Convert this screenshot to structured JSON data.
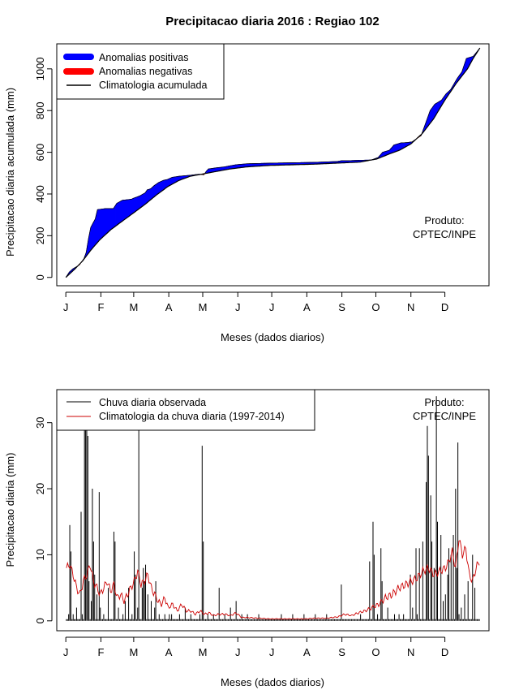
{
  "title": "Precipitacao diaria 2016 : Regiao 102",
  "months": [
    "J",
    "F",
    "M",
    "A",
    "M",
    "J",
    "J",
    "A",
    "S",
    "O",
    "N",
    "D"
  ],
  "month_start_days": [
    0,
    31,
    60,
    91,
    121,
    152,
    182,
    213,
    244,
    274,
    305,
    335
  ],
  "xlabel": "Meses (dados diarios)",
  "product": {
    "line1": "Produto:",
    "line2": "CPTEC/INPE"
  },
  "colors": {
    "positive": "#0000ff",
    "negative": "#ff0000",
    "observed": "#000000",
    "climatology": "#cc0000"
  },
  "chart_data": [
    {
      "type": "area",
      "name": "accumulated",
      "ylabel": "Precipitacao diaria acumulada (mm)",
      "yticks": [
        0,
        200,
        400,
        600,
        800,
        1000
      ],
      "ylim": [
        -40,
        1120
      ],
      "xlim": [
        -8,
        374
      ],
      "legend": [
        "Anomalias positivas",
        "Anomalias negativas",
        "Climatologia acumulada"
      ],
      "climatology": [
        [
          0,
          0
        ],
        [
          8,
          40
        ],
        [
          15,
          80
        ],
        [
          22,
          130
        ],
        [
          30,
          180
        ],
        [
          40,
          230
        ],
        [
          50,
          270
        ],
        [
          60,
          310
        ],
        [
          70,
          350
        ],
        [
          80,
          395
        ],
        [
          90,
          435
        ],
        [
          100,
          465
        ],
        [
          110,
          485
        ],
        [
          120,
          495
        ],
        [
          130,
          505
        ],
        [
          145,
          520
        ],
        [
          160,
          530
        ],
        [
          180,
          537
        ],
        [
          200,
          540
        ],
        [
          220,
          543
        ],
        [
          240,
          548
        ],
        [
          260,
          553
        ],
        [
          275,
          568
        ],
        [
          285,
          590
        ],
        [
          295,
          610
        ],
        [
          305,
          640
        ],
        [
          315,
          690
        ],
        [
          325,
          760
        ],
        [
          335,
          850
        ],
        [
          345,
          930
        ],
        [
          355,
          1000
        ],
        [
          360,
          1050
        ],
        [
          366,
          1100
        ]
      ],
      "observed": [
        [
          0,
          0
        ],
        [
          3,
          25
        ],
        [
          6,
          40
        ],
        [
          12,
          60
        ],
        [
          16,
          90
        ],
        [
          18,
          120
        ],
        [
          20,
          185
        ],
        [
          22,
          240
        ],
        [
          26,
          280
        ],
        [
          28,
          325
        ],
        [
          35,
          330
        ],
        [
          42,
          330
        ],
        [
          45,
          355
        ],
        [
          50,
          370
        ],
        [
          58,
          375
        ],
        [
          60,
          380
        ],
        [
          65,
          390
        ],
        [
          70,
          405
        ],
        [
          72,
          420
        ],
        [
          75,
          425
        ],
        [
          78,
          440
        ],
        [
          82,
          455
        ],
        [
          86,
          465
        ],
        [
          90,
          470
        ],
        [
          94,
          480
        ],
        [
          100,
          485
        ],
        [
          110,
          490
        ],
        [
          118,
          495
        ],
        [
          122,
          492
        ],
        [
          124,
          508
        ],
        [
          126,
          520
        ],
        [
          132,
          525
        ],
        [
          140,
          530
        ],
        [
          150,
          540
        ],
        [
          160,
          545
        ],
        [
          180,
          548
        ],
        [
          200,
          550
        ],
        [
          220,
          552
        ],
        [
          240,
          556
        ],
        [
          244,
          560
        ],
        [
          250,
          560
        ],
        [
          260,
          562
        ],
        [
          270,
          563
        ],
        [
          276,
          575
        ],
        [
          280,
          600
        ],
        [
          286,
          610
        ],
        [
          290,
          635
        ],
        [
          296,
          645
        ],
        [
          302,
          647
        ],
        [
          306,
          650
        ],
        [
          314,
          680
        ],
        [
          318,
          740
        ],
        [
          322,
          800
        ],
        [
          326,
          830
        ],
        [
          332,
          850
        ],
        [
          336,
          880
        ],
        [
          340,
          900
        ],
        [
          346,
          955
        ],
        [
          350,
          985
        ],
        [
          354,
          1050
        ],
        [
          360,
          1060
        ],
        [
          363,
          1080
        ],
        [
          366,
          1100
        ]
      ]
    },
    {
      "type": "bar+line",
      "name": "daily",
      "ylabel": "Precipitacao diaria (mm)",
      "yticks": [
        0,
        10,
        20,
        30
      ],
      "ylim": [
        -1.5,
        35
      ],
      "xlim": [
        -8,
        374
      ],
      "legend": [
        "Chuva diaria observada",
        "Climatologia da chuva diaria (1997-2014)"
      ],
      "observed": [
        [
          2,
          1
        ],
        [
          3,
          14.5
        ],
        [
          4,
          10.5
        ],
        [
          6,
          1
        ],
        [
          9,
          2
        ],
        [
          13,
          16.5
        ],
        [
          14,
          1
        ],
        [
          16,
          30
        ],
        [
          17,
          29.5
        ],
        [
          18,
          32
        ],
        [
          19,
          28
        ],
        [
          20,
          6
        ],
        [
          22,
          3
        ],
        [
          23,
          20
        ],
        [
          24,
          12
        ],
        [
          25,
          7
        ],
        [
          27,
          4
        ],
        [
          29,
          19.5
        ],
        [
          30,
          2
        ],
        [
          33,
          1
        ],
        [
          37,
          5
        ],
        [
          42,
          13.5
        ],
        [
          43,
          12
        ],
        [
          46,
          2
        ],
        [
          50,
          1
        ],
        [
          52,
          3
        ],
        [
          55,
          5
        ],
        [
          58,
          1
        ],
        [
          60,
          10.5
        ],
        [
          61,
          7
        ],
        [
          63,
          2
        ],
        [
          64,
          31
        ],
        [
          67,
          5
        ],
        [
          68,
          8
        ],
        [
          69,
          6
        ],
        [
          70,
          8.5
        ],
        [
          72,
          4
        ],
        [
          75,
          3
        ],
        [
          78,
          2
        ],
        [
          79,
          6
        ],
        [
          82,
          1
        ],
        [
          87,
          1
        ],
        [
          91,
          1
        ],
        [
          93,
          1
        ],
        [
          100,
          1
        ],
        [
          105,
          2
        ],
        [
          110,
          1
        ],
        [
          118,
          1
        ],
        [
          120,
          26.5
        ],
        [
          121,
          12
        ],
        [
          125,
          1
        ],
        [
          130,
          1
        ],
        [
          135,
          5
        ],
        [
          140,
          1
        ],
        [
          145,
          2
        ],
        [
          150,
          3
        ],
        [
          155,
          1
        ],
        [
          160,
          1
        ],
        [
          170,
          1
        ],
        [
          190,
          1
        ],
        [
          200,
          1
        ],
        [
          210,
          1
        ],
        [
          220,
          1
        ],
        [
          230,
          1
        ],
        [
          243,
          5.5
        ],
        [
          260,
          1
        ],
        [
          268,
          9
        ],
        [
          271,
          15
        ],
        [
          272,
          10
        ],
        [
          275,
          1
        ],
        [
          278,
          11
        ],
        [
          279,
          6
        ],
        [
          284,
          2
        ],
        [
          290,
          1
        ],
        [
          294,
          1
        ],
        [
          298,
          1
        ],
        [
          304,
          7
        ],
        [
          306,
          2
        ],
        [
          309,
          11
        ],
        [
          310,
          1
        ],
        [
          312,
          11
        ],
        [
          315,
          12
        ],
        [
          318,
          21
        ],
        [
          319,
          29.5
        ],
        [
          320,
          25
        ],
        [
          322,
          19
        ],
        [
          323,
          12
        ],
        [
          325,
          8
        ],
        [
          327,
          34
        ],
        [
          328,
          15
        ],
        [
          331,
          13
        ],
        [
          333,
          3
        ],
        [
          335,
          4
        ],
        [
          337,
          7
        ],
        [
          338,
          11
        ],
        [
          340,
          10
        ],
        [
          342,
          13
        ],
        [
          344,
          20
        ],
        [
          345,
          8
        ],
        [
          346,
          27
        ],
        [
          347,
          1
        ],
        [
          349,
          2
        ],
        [
          352,
          4
        ],
        [
          355,
          6
        ],
        [
          359,
          10
        ],
        [
          361,
          5
        ]
      ],
      "climatology": [
        [
          0,
          8
        ],
        [
          3,
          8.5
        ],
        [
          6,
          7
        ],
        [
          9,
          5
        ],
        [
          12,
          4
        ],
        [
          15,
          6
        ],
        [
          18,
          7
        ],
        [
          21,
          8.5
        ],
        [
          24,
          6
        ],
        [
          27,
          5
        ],
        [
          30,
          4
        ],
        [
          33,
          5
        ],
        [
          36,
          6
        ],
        [
          39,
          4.5
        ],
        [
          42,
          5.5
        ],
        [
          45,
          3.5
        ],
        [
          48,
          4
        ],
        [
          51,
          3
        ],
        [
          54,
          4
        ],
        [
          57,
          5
        ],
        [
          60,
          6
        ],
        [
          63,
          7.5
        ],
        [
          66,
          5.5
        ],
        [
          69,
          6
        ],
        [
          72,
          7
        ],
        [
          75,
          5
        ],
        [
          78,
          4
        ],
        [
          81,
          3
        ],
        [
          84,
          2.5
        ],
        [
          87,
          3.5
        ],
        [
          90,
          2
        ],
        [
          94,
          2.5
        ],
        [
          98,
          1.5
        ],
        [
          102,
          2.5
        ],
        [
          106,
          1.5
        ],
        [
          110,
          1.5
        ],
        [
          114,
          1
        ],
        [
          118,
          1.5
        ],
        [
          122,
          1
        ],
        [
          126,
          1.2
        ],
        [
          130,
          0.8
        ],
        [
          135,
          1
        ],
        [
          140,
          1
        ],
        [
          145,
          0.8
        ],
        [
          150,
          1.2
        ],
        [
          155,
          0.5
        ],
        [
          160,
          0.5
        ],
        [
          170,
          0.4
        ],
        [
          180,
          0.3
        ],
        [
          190,
          0.3
        ],
        [
          200,
          0.3
        ],
        [
          210,
          0.3
        ],
        [
          220,
          0.4
        ],
        [
          230,
          0.4
        ],
        [
          240,
          0.6
        ],
        [
          246,
          1
        ],
        [
          252,
          0.8
        ],
        [
          258,
          1.2
        ],
        [
          264,
          1.5
        ],
        [
          270,
          2
        ],
        [
          276,
          2.5
        ],
        [
          282,
          3.5
        ],
        [
          288,
          4
        ],
        [
          294,
          5
        ],
        [
          300,
          5.5
        ],
        [
          305,
          6
        ],
        [
          310,
          6.5
        ],
        [
          315,
          7.5
        ],
        [
          320,
          8
        ],
        [
          325,
          7
        ],
        [
          330,
          7.5
        ],
        [
          335,
          8
        ],
        [
          338,
          9
        ],
        [
          341,
          10.5
        ],
        [
          344,
          8
        ],
        [
          347,
          12.5
        ],
        [
          350,
          10
        ],
        [
          353,
          11
        ],
        [
          356,
          7
        ],
        [
          359,
          6
        ],
        [
          362,
          8
        ],
        [
          365,
          9
        ]
      ]
    }
  ]
}
